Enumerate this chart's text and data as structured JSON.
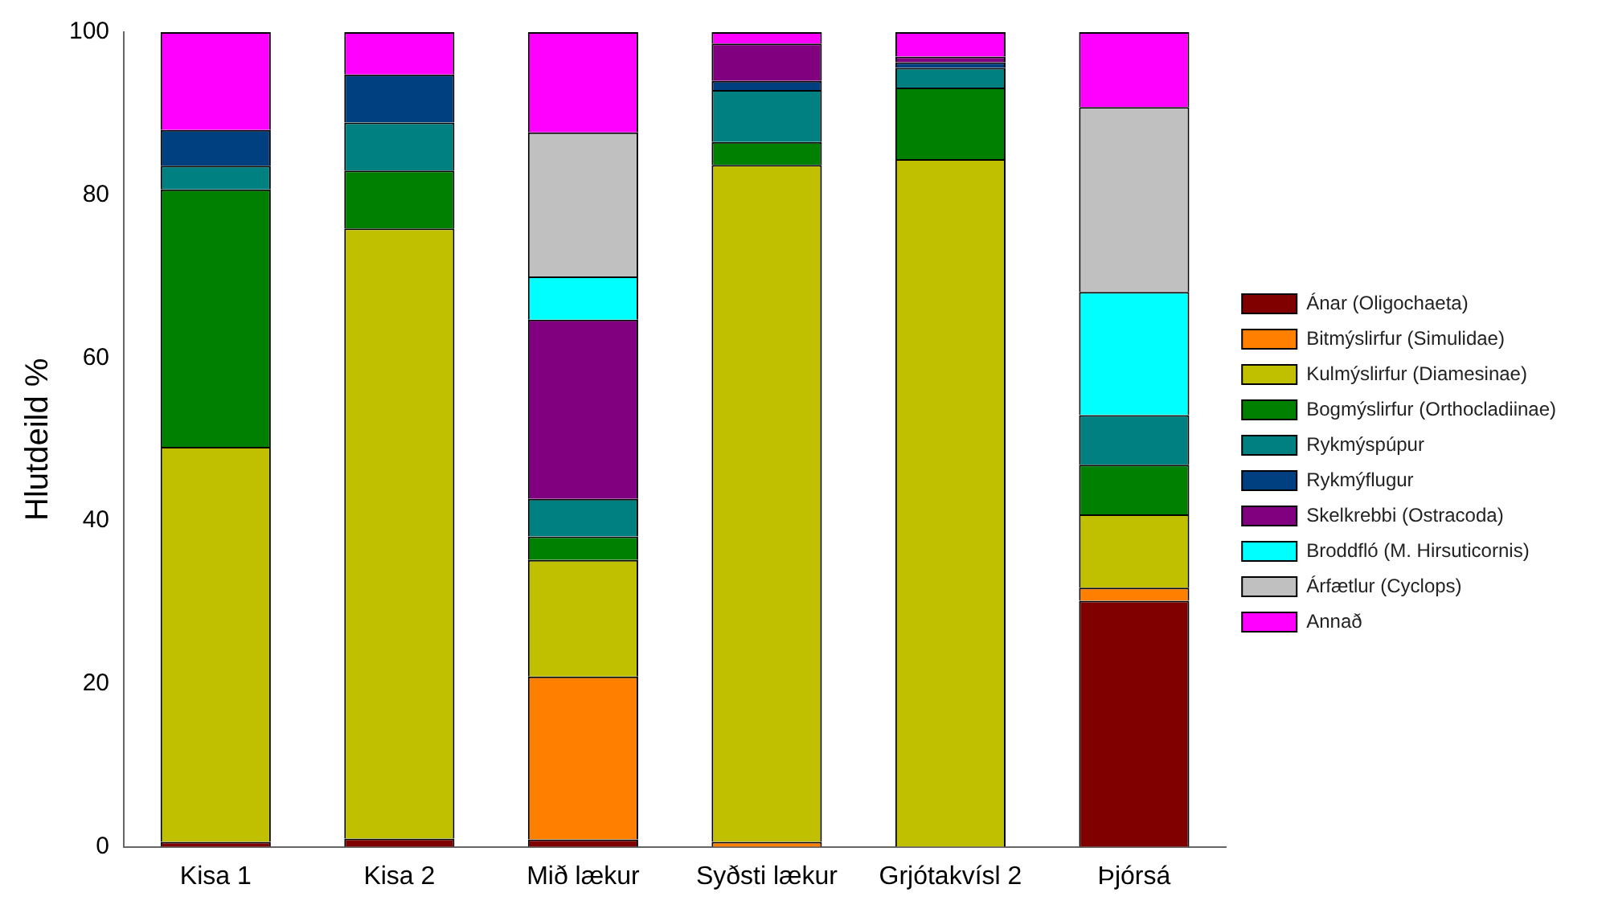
{
  "chart_data": {
    "type": "bar",
    "stacked": true,
    "ylabel": "Hlutdeild %",
    "categories": [
      "Kisa 1",
      "Kisa 2",
      "Mið lækur",
      "Syðsti lækur",
      "Grjótakvísl 2",
      "Þjórsá"
    ],
    "ylim": [
      0,
      100
    ],
    "yticks": [
      0,
      20,
      40,
      60,
      80,
      100
    ],
    "grid": false,
    "legend": "right",
    "series": [
      {
        "name": "Ánar (Oligochaeta)",
        "color": "#800000",
        "values": [
          0.6,
          1.0,
          0.9,
          0,
          0,
          30.2
        ]
      },
      {
        "name": "Bitmýslirfur (Simulidae)",
        "color": "#ff8000",
        "values": [
          0,
          0,
          20.0,
          0.6,
          0,
          1.6
        ]
      },
      {
        "name": "Kulmýslirfur (Diamesinae)",
        "color": "#c0c000",
        "values": [
          48.5,
          74.9,
          14.3,
          83.1,
          84.4,
          9.0
        ]
      },
      {
        "name": "Bogmýslirfur (Orthocladiinae)",
        "color": "#008000",
        "values": [
          31.6,
          7.1,
          2.9,
          2.8,
          8.8,
          6.1
        ]
      },
      {
        "name": "Rykmýspúpur",
        "color": "#008080",
        "values": [
          2.9,
          5.9,
          4.6,
          6.4,
          2.4,
          6.1
        ]
      },
      {
        "name": "Rykmýflugur",
        "color": "#004080",
        "values": [
          4.4,
          5.9,
          0,
          1.1,
          0.7,
          0
        ]
      },
      {
        "name": "Skelkrebbi (Ostracoda)",
        "color": "#800080",
        "values": [
          0,
          0,
          22.0,
          4.6,
          0.7,
          0
        ]
      },
      {
        "name": "Broddfló (M. Hirsuticornis)",
        "color": "#00ffff",
        "values": [
          0,
          0,
          5.3,
          0,
          0,
          15.1
        ]
      },
      {
        "name": "Árfætlur (Cyclops)",
        "color": "#c0c0c0",
        "values": [
          0,
          0,
          17.7,
          0,
          0,
          22.7
        ]
      },
      {
        "name": "Annað",
        "color": "#ff00ff",
        "values": [
          12.0,
          5.2,
          12.3,
          1.4,
          3.0,
          9.2
        ]
      }
    ]
  }
}
